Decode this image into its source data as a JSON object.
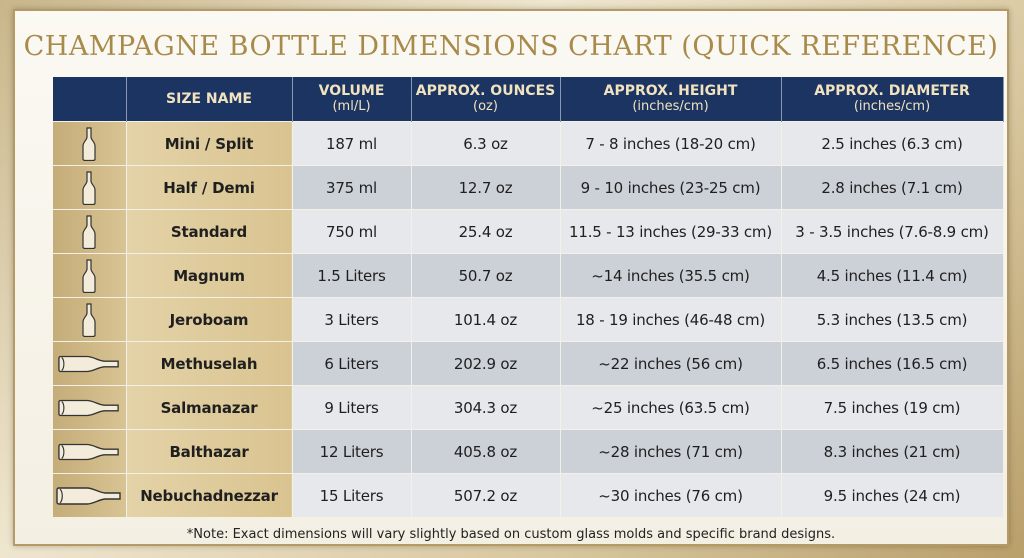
{
  "title": "CHAMPAGNE BOTTLE DIMENSIONS CHART (QUICK REFERENCE)",
  "headers": {
    "icon": "",
    "name": "SIZE NAME",
    "volume": "VOLUME",
    "volume_unit": "(ml/L)",
    "ounces": "APPROX. OUNCES",
    "ounces_unit": "(oz)",
    "height": "APPROX. HEIGHT",
    "height_unit": "(inches/cm)",
    "diameter": "APPROX. DIAMETER",
    "diameter_unit": "(inches/cm)"
  },
  "rows": [
    {
      "icon": "bottle-vertical-icon",
      "name": "Mini / Split",
      "volume": "187 ml",
      "ounces": "6.3 oz",
      "height": "7 - 8 inches (18-20 cm)",
      "diameter": "2.5 inches (6.3 cm)"
    },
    {
      "icon": "bottle-vertical-icon",
      "name": "Half / Demi",
      "volume": "375 ml",
      "ounces": "12.7 oz",
      "height": "9 - 10 inches (23-25 cm)",
      "diameter": "2.8 inches (7.1 cm)"
    },
    {
      "icon": "bottle-vertical-icon",
      "name": "Standard",
      "volume": "750 ml",
      "ounces": "25.4 oz",
      "height": "11.5 - 13 inches (29-33 cm)",
      "diameter": "3 - 3.5 inches (7.6-8.9 cm)"
    },
    {
      "icon": "bottle-vertical-icon",
      "name": "Magnum",
      "volume": "1.5 Liters",
      "ounces": "50.7 oz",
      "height": "~14 inches (35.5 cm)",
      "diameter": "4.5 inches (11.4 cm)"
    },
    {
      "icon": "bottle-vertical-icon",
      "name": "Jeroboam",
      "volume": "3 Liters",
      "ounces": "101.4 oz",
      "height": "18 - 19 inches (46-48 cm)",
      "diameter": "5.3 inches (13.5 cm)"
    },
    {
      "icon": "bottle-horizontal-icon",
      "name": "Methuselah",
      "volume": "6 Liters",
      "ounces": "202.9 oz",
      "height": "~22 inches (56 cm)",
      "diameter": "6.5 inches (16.5 cm)"
    },
    {
      "icon": "bottle-horizontal-icon",
      "name": "Salmanazar",
      "volume": "9 Liters",
      "ounces": "304.3 oz",
      "height": "~25 inches (63.5 cm)",
      "diameter": "7.5 inches (19 cm)"
    },
    {
      "icon": "bottle-horizontal-icon",
      "name": "Balthazar",
      "volume": "12 Liters",
      "ounces": "405.8 oz",
      "height": "~28 inches (71 cm)",
      "diameter": "8.3 inches (21 cm)"
    },
    {
      "icon": "bottle-horizontal-icon",
      "name": "Nebuchadnezzar",
      "volume": "15 Liters",
      "ounces": "507.2 oz",
      "height": "~30 inches (76 cm)",
      "diameter": "9.5 inches (24 cm)"
    }
  ],
  "note": "*Note: Exact dimensions will vary slightly based on custom glass molds and specific brand designs.",
  "colors": {
    "header_bg": "#1c3461",
    "header_text": "#f1e3bf",
    "title": "#a88a4a"
  }
}
